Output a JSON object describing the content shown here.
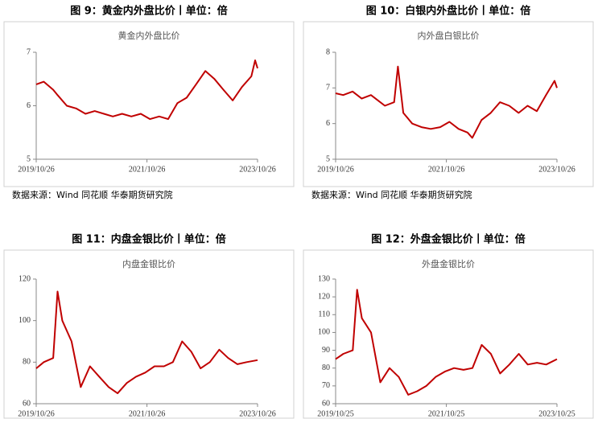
{
  "chart_data": [
    {
      "type": "line",
      "title": "图 9：黄金内外盘比价丨单位：倍",
      "subtitle": "黄金内外盘比价",
      "source": "数据来源：Wind 同花顺 华泰期货研究院",
      "color": "#c00000",
      "x": [
        "2019/10/26",
        "2019/12/15",
        "2020/02/15",
        "2020/03/15",
        "2020/05/15",
        "2020/07/15",
        "2020/09/15",
        "2020/11/15",
        "2021/01/15",
        "2021/03/15",
        "2021/05/15",
        "2021/07/15",
        "2021/09/15",
        "2021/11/15",
        "2022/01/15",
        "2022/03/15",
        "2022/05/15",
        "2022/07/15",
        "2022/09/15",
        "2022/11/15",
        "2023/01/15",
        "2023/03/15",
        "2023/05/15",
        "2023/07/15",
        "2023/09/15",
        "2023/10/10",
        "2023/10/26"
      ],
      "values": [
        6.4,
        6.45,
        6.3,
        6.2,
        6.0,
        5.95,
        5.85,
        5.9,
        5.85,
        5.8,
        5.85,
        5.8,
        5.85,
        5.75,
        5.8,
        5.75,
        6.05,
        6.15,
        6.4,
        6.65,
        6.5,
        6.3,
        6.1,
        6.35,
        6.55,
        6.85,
        6.7
      ],
      "xlim": [
        "2019/10/26",
        "2023/10/26"
      ],
      "xticks": [
        "2019/10/26",
        "2021/10/26",
        "2023/10/26"
      ],
      "ylim": [
        5,
        7
      ],
      "yticks": [
        5,
        6,
        7
      ]
    },
    {
      "type": "line",
      "title": "图 10：白银内外盘比价丨单位：倍",
      "subtitle": "内外盘白银比价",
      "source": "数据来源：Wind 同花顺 华泰期货研究院",
      "color": "#c00000",
      "x": [
        "2019/10/26",
        "2019/12/15",
        "2020/02/15",
        "2020/04/15",
        "2020/06/15",
        "2020/09/15",
        "2020/11/15",
        "2020/12/10",
        "2021/01/15",
        "2021/03/15",
        "2021/05/15",
        "2021/07/15",
        "2021/09/15",
        "2021/11/15",
        "2022/01/15",
        "2022/03/15",
        "2022/04/15",
        "2022/06/15",
        "2022/08/15",
        "2022/10/15",
        "2022/12/15",
        "2023/02/15",
        "2023/04/15",
        "2023/06/15",
        "2023/08/15",
        "2023/10/10",
        "2023/10/26"
      ],
      "values": [
        6.85,
        6.8,
        6.9,
        6.7,
        6.8,
        6.5,
        6.6,
        7.6,
        6.3,
        6.0,
        5.9,
        5.85,
        5.9,
        6.05,
        5.85,
        5.75,
        5.6,
        6.1,
        6.3,
        6.6,
        6.5,
        6.3,
        6.5,
        6.35,
        6.8,
        7.2,
        7.0
      ],
      "xlim": [
        "2019/10/26",
        "2023/10/26"
      ],
      "xticks": [
        "2019/10/26",
        "2021/10/26",
        "2023/10/26"
      ],
      "ylim": [
        5,
        8
      ],
      "yticks": [
        5,
        6,
        7,
        8
      ]
    },
    {
      "type": "line",
      "title": "图 11：内盘金银比价丨单位：倍",
      "subtitle": "内盘金银比价",
      "color": "#c00000",
      "x": [
        "2019/10/26",
        "2019/12/15",
        "2020/02/15",
        "2020/03/15",
        "2020/04/15",
        "2020/06/15",
        "2020/08/15",
        "2020/10/15",
        "2020/12/15",
        "2021/02/15",
        "2021/04/15",
        "2021/06/15",
        "2021/08/15",
        "2021/10/15",
        "2021/12/15",
        "2022/02/15",
        "2022/04/15",
        "2022/06/15",
        "2022/08/15",
        "2022/10/15",
        "2022/12/15",
        "2023/02/15",
        "2023/04/15",
        "2023/06/15",
        "2023/08/15",
        "2023/10/26"
      ],
      "values": [
        77,
        80,
        82,
        114,
        100,
        90,
        68,
        78,
        73,
        68,
        65,
        70,
        73,
        75,
        78,
        78,
        80,
        90,
        85,
        77,
        80,
        86,
        82,
        79,
        80,
        81
      ],
      "xlim": [
        "2019/10/26",
        "2023/10/26"
      ],
      "xticks": [
        "2019/10/26",
        "2021/10/26",
        "2023/10/26"
      ],
      "ylim": [
        60,
        120
      ],
      "yticks": [
        60,
        80,
        100,
        120
      ]
    },
    {
      "type": "line",
      "title": "图 12：外盘金银比价丨单位：倍",
      "subtitle": "外盘金银比价",
      "color": "#c00000",
      "x": [
        "2019/10/25",
        "2019/12/15",
        "2020/02/15",
        "2020/03/15",
        "2020/04/15",
        "2020/06/15",
        "2020/08/15",
        "2020/10/15",
        "2020/12/15",
        "2021/02/15",
        "2021/04/15",
        "2021/06/15",
        "2021/08/15",
        "2021/10/15",
        "2021/12/15",
        "2022/02/15",
        "2022/04/15",
        "2022/06/15",
        "2022/08/15",
        "2022/10/15",
        "2022/12/15",
        "2023/02/15",
        "2023/04/15",
        "2023/06/15",
        "2023/08/15",
        "2023/10/25"
      ],
      "values": [
        85,
        88,
        90,
        124,
        108,
        100,
        72,
        80,
        75,
        65,
        67,
        70,
        75,
        78,
        80,
        79,
        80,
        93,
        88,
        77,
        82,
        88,
        82,
        83,
        82,
        85
      ],
      "xlim": [
        "2019/10/25",
        "2023/10/25"
      ],
      "xticks": [
        "2019/10/25",
        "2021/10/25",
        "2023/10/25"
      ],
      "ylim": [
        60,
        130
      ],
      "yticks": [
        60,
        70,
        80,
        90,
        100,
        110,
        120,
        130
      ]
    }
  ]
}
